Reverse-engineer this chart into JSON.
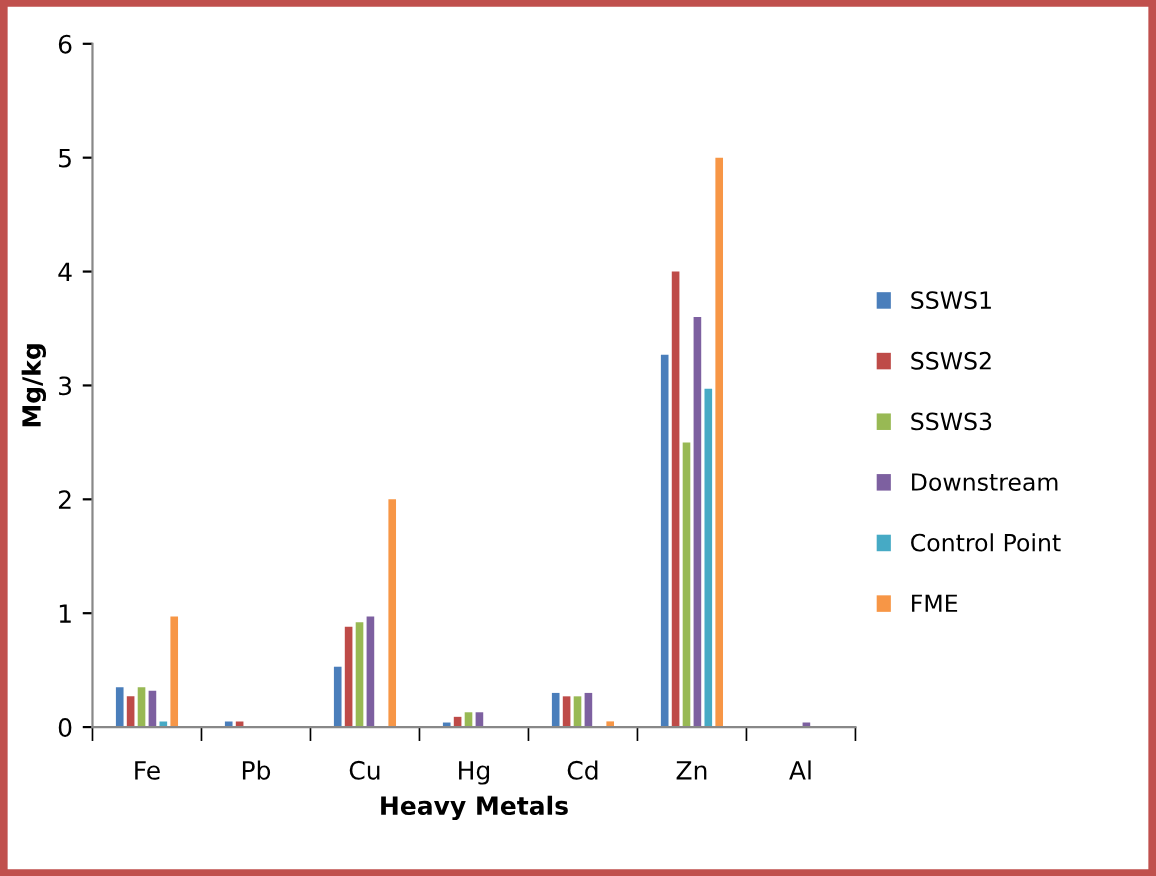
{
  "chart_data": {
    "type": "bar",
    "xlabel": "Heavy Metals",
    "ylabel": "Mg/kg",
    "categories": [
      "Fe",
      "Pb",
      "Cu",
      "Hg",
      "Cd",
      "Zn",
      "Al"
    ],
    "series": [
      {
        "name": "SSWS1",
        "color": "#4a7ebb",
        "values": [
          0.35,
          0.05,
          0.53,
          0.04,
          0.3,
          3.27,
          null
        ]
      },
      {
        "name": "SSWS2",
        "color": "#be4b48",
        "values": [
          0.27,
          0.05,
          0.88,
          0.09,
          0.27,
          4.0,
          null
        ]
      },
      {
        "name": "SSWS3",
        "color": "#98b954",
        "values": [
          0.35,
          null,
          0.92,
          0.13,
          0.27,
          2.5,
          null
        ]
      },
      {
        "name": "Downstream",
        "color": "#7d60a0",
        "values": [
          0.32,
          null,
          0.97,
          0.13,
          0.3,
          3.6,
          0.04
        ]
      },
      {
        "name": "Control Point",
        "color": "#46aac5",
        "values": [
          0.05,
          null,
          null,
          null,
          null,
          2.97,
          null
        ]
      },
      {
        "name": "FME",
        "color": "#f79646",
        "values": [
          0.97,
          null,
          2.0,
          null,
          0.05,
          5.0,
          null
        ]
      }
    ],
    "ylim": [
      0,
      6
    ],
    "yticks": [
      0,
      1,
      2,
      3,
      4,
      5,
      6
    ],
    "grid": false,
    "legend": "right"
  }
}
